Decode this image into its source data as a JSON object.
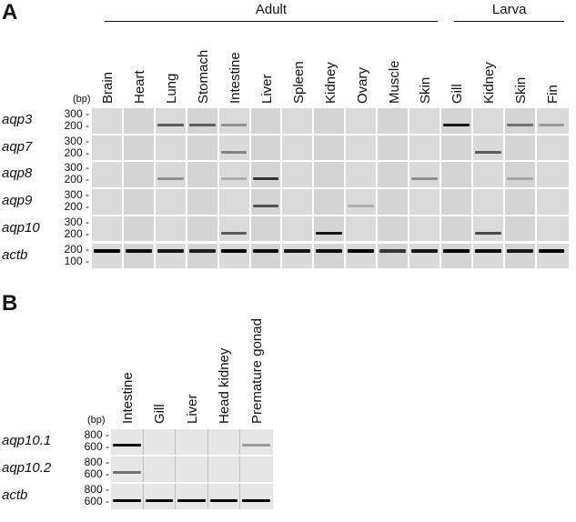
{
  "panelA": {
    "letter": "A",
    "groups": [
      {
        "label": "Adult",
        "from": 0,
        "to": 10
      },
      {
        "label": "Larva",
        "from": 11,
        "to": 14
      }
    ],
    "columns": [
      "Brain",
      "Heart",
      "Lung",
      "Stomach",
      "Intestine",
      "Liver",
      "Spleen",
      "Kidney",
      "Ovary",
      "Muscle",
      "Skin",
      "Gill",
      "Kidney",
      "Skin",
      "Fin"
    ],
    "bp_label": "(bp)",
    "rows": [
      {
        "gene": "aqp3",
        "ticks": [
          "300",
          "200"
        ],
        "bands": [
          0,
          0,
          0.55,
          0.55,
          0.3,
          0,
          0,
          0,
          0,
          0,
          0,
          0.9,
          0,
          0.45,
          0.25
        ]
      },
      {
        "gene": "aqp7",
        "ticks": [
          "300",
          "200"
        ],
        "bands": [
          0,
          0,
          0,
          0,
          0.35,
          0,
          0,
          0,
          0,
          0,
          0,
          0,
          0.55,
          0,
          0
        ]
      },
      {
        "gene": "aqp8",
        "ticks": [
          "300",
          "200"
        ],
        "bands": [
          0,
          0,
          0.3,
          0,
          0.15,
          0.75,
          0,
          0,
          0,
          0,
          0.3,
          0,
          0,
          0.2,
          0
        ]
      },
      {
        "gene": "aqp9",
        "ticks": [
          "300",
          "200"
        ],
        "bands": [
          0,
          0,
          0,
          0,
          0,
          0.6,
          0,
          0,
          0.15,
          0,
          0,
          0,
          0,
          0,
          0
        ]
      },
      {
        "gene": "aqp10",
        "ticks": [
          "300",
          "200"
        ],
        "bands": [
          0,
          0,
          0,
          0,
          0.55,
          0,
          0,
          0.9,
          0,
          0,
          0,
          0,
          0.65,
          0,
          0
        ]
      },
      {
        "gene": "actb",
        "ticks": [
          "200",
          "100"
        ],
        "bands": [
          1,
          0.95,
          0.9,
          0.85,
          1,
          0.95,
          0.9,
          0.95,
          1,
          0.75,
          0.9,
          1,
          0.95,
          0.9,
          1
        ]
      }
    ]
  },
  "panelB": {
    "letter": "B",
    "columns": [
      "Intestine",
      "Gill",
      "Liver",
      "Head kidney",
      "Premature gonad"
    ],
    "bp_label": "(bp)",
    "rows": [
      {
        "gene": "aqp10.1",
        "ticks": [
          "800",
          "600"
        ],
        "bands": [
          1,
          0,
          0,
          0,
          0.25
        ]
      },
      {
        "gene": "aqp10.2",
        "ticks": [
          "800",
          "600"
        ],
        "bands": [
          0.45,
          0,
          0,
          0,
          0
        ]
      },
      {
        "gene": "actb",
        "ticks": [
          "800",
          "600"
        ],
        "bands": [
          1,
          1,
          1,
          1,
          1
        ]
      }
    ]
  }
}
